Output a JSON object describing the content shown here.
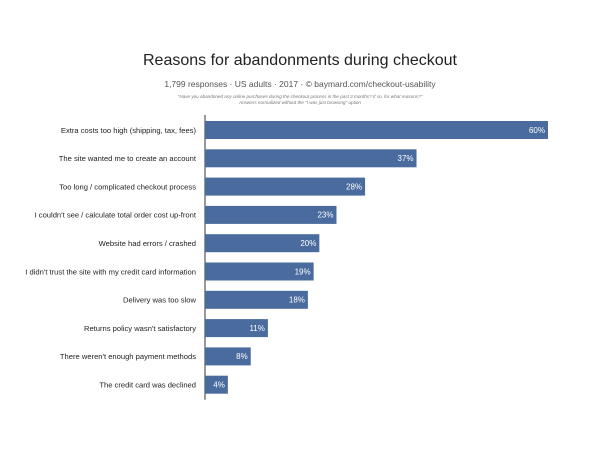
{
  "header": {
    "title": "Reasons for abandonments during checkout",
    "subtitle": "1,799 responses  ·  US adults  ·  2017  ·  © baymard.com/checkout-usability",
    "question_line1": "\"Have you abandoned any online purchases during the checkout process in the past 3 months? If so, for what reasons?\"",
    "question_line2": "Answers normalized without the \"I was just browsing\" option"
  },
  "colors": {
    "bar": "#4a6b9d",
    "axis": "#333333",
    "value_text": "#ffffff"
  },
  "chart_data": {
    "type": "bar",
    "orientation": "horizontal",
    "title": "Reasons for abandonments during checkout",
    "xlabel": "",
    "ylabel": "",
    "xlim": [
      0,
      60
    ],
    "grid": false,
    "categories": [
      "Extra costs too high (shipping, tax, fees)",
      "The site wanted me to create an account",
      "Too long / complicated checkout process",
      "I couldn't see / calculate total order cost up-front",
      "Website had errors / crashed",
      "I didn't trust the site with my credit card information",
      "Delivery was too slow",
      "Returns policy wasn't satisfactory",
      "There weren't enough payment methods",
      "The credit card was declined"
    ],
    "values": [
      60,
      37,
      28,
      23,
      20,
      19,
      18,
      11,
      8,
      4
    ],
    "value_labels": [
      "60%",
      "37%",
      "28%",
      "23%",
      "20%",
      "19%",
      "18%",
      "11%",
      "8%",
      "4%"
    ]
  }
}
